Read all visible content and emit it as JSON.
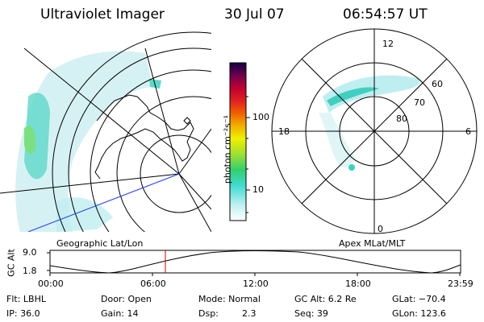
{
  "header": {
    "instrument": "Ultraviolet Imager",
    "date": "30 Jul 07",
    "time": "06:54:57 UT"
  },
  "colorbar": {
    "label": "photon cm⁻²s⁻¹",
    "ticks": [
      "100",
      "10"
    ]
  },
  "polar_plot": {
    "mlt_labels": {
      "top": "12",
      "left": "18",
      "right": "6",
      "bottom": "0"
    },
    "lat_labels": [
      "60",
      "70",
      "80"
    ]
  },
  "timeline": {
    "left_title": "Geographic Lat/Lon",
    "right_title": "Apex MLat/MLT",
    "axis_label": "GC Alt",
    "y_ticks": [
      "9.0",
      "1.8"
    ],
    "x_ticks": [
      "00:00",
      "06:00",
      "12:00",
      "18:00",
      "23:59"
    ],
    "marker_time": "06:54:57",
    "marker_color": "#cc0000"
  },
  "info": {
    "row1": {
      "flt": "Flt: LBHL",
      "door": "Door: Open",
      "mode": "Mode: Normal",
      "gc_alt": "GC Alt: 6.2 Re",
      "glat": "GLat: −70.4"
    },
    "row2": {
      "ip": "IP: 36.0",
      "gain": "Gain: 14",
      "dsp_label": "Dsp:",
      "dsp_value": "2.3",
      "seq": "Seq: 39",
      "glon": "GLon: 123.6"
    }
  }
}
